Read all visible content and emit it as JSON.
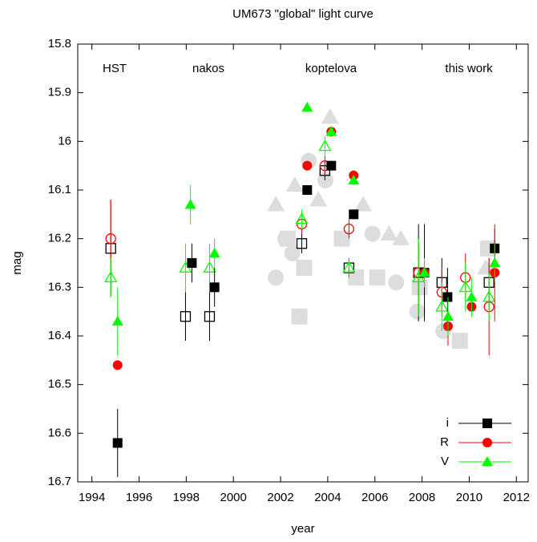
{
  "chart_data": {
    "type": "scatter",
    "title": "UM673 \"global\" light curve",
    "x_label": "year",
    "y_label": "mag",
    "annotations": [
      "HST",
      "nakos",
      "koptelova",
      "this work"
    ],
    "xlim": [
      1993.4,
      2012.5
    ],
    "xticks": [
      1994,
      1996,
      1998,
      2000,
      2002,
      2004,
      2006,
      2008,
      2010,
      2012
    ],
    "ylim": [
      15.8,
      16.7
    ],
    "y_reversed": true,
    "yticks": [
      15.8,
      15.9,
      16,
      16.1,
      16.2,
      16.3,
      16.4,
      16.5,
      16.6,
      16.7
    ],
    "legend": "bottom-right",
    "series": [
      {
        "color": "#dddddd",
        "marker": "square",
        "filled": true,
        "legend": false,
        "size": 10,
        "x": [
          2002.3,
          2003.0,
          2002.8,
          2004.6,
          2005.2,
          2006.1,
          2009.6,
          2010.8,
          2007.9
        ],
        "values": [
          16.2,
          16.26,
          16.36,
          16.2,
          16.28,
          16.28,
          16.41,
          16.22,
          16.3
        ]
      },
      {
        "color": "#dddddd",
        "marker": "circle",
        "filled": true,
        "legend": false,
        "size": 10,
        "x": [
          2002.2,
          2003.2,
          2003.9,
          2005.9,
          2006.9,
          2007.8,
          2008.9,
          2001.8,
          2002.5
        ],
        "values": [
          16.2,
          16.04,
          16.08,
          16.19,
          16.29,
          16.35,
          16.39,
          16.28,
          16.23
        ]
      },
      {
        "color": "#dddddd",
        "marker": "triangle",
        "filled": true,
        "legend": false,
        "size": 11,
        "x": [
          2001.8,
          2002.6,
          2004.1,
          2005.5,
          2006.6,
          2007.1,
          2010.7,
          2003.6
        ],
        "values": [
          16.13,
          16.09,
          15.95,
          16.13,
          16.19,
          16.2,
          16.26,
          16.12
        ]
      },
      {
        "name": "i",
        "color": "#000000",
        "marker": "square",
        "filled": false,
        "legend": false,
        "size": 6,
        "x": [
          1994.8,
          1997.97,
          1998.99,
          2002.9,
          2003.88,
          2004.9,
          2007.85,
          2008.84,
          2010.84
        ],
        "values": [
          16.22,
          16.36,
          16.36,
          16.21,
          16.06,
          16.26,
          16.27,
          16.29,
          16.29
        ],
        "errors": [
          0.1,
          0.05,
          0.05,
          0.02,
          0.02,
          0.02,
          0.1,
          0.05,
          0.05
        ]
      },
      {
        "name": "R",
        "color": "#ff0000",
        "marker": "circle",
        "filled": false,
        "legend": false,
        "size": 6,
        "x": [
          1994.8,
          2002.9,
          2003.88,
          2004.9,
          2007.85,
          2008.84,
          2009.84,
          2010.84
        ],
        "values": [
          16.2,
          16.17,
          16.05,
          16.18,
          16.27,
          16.31,
          16.28,
          16.34
        ],
        "errors": [
          0.08,
          0.02,
          0.02,
          0.02,
          0.06,
          0.05,
          0.05,
          0.1
        ]
      },
      {
        "name": "V",
        "color": "#00ff00",
        "marker": "triangle",
        "filled": false,
        "legend": false,
        "size": 7,
        "x": [
          1994.8,
          1997.97,
          1998.99,
          2002.9,
          2003.88,
          2004.9,
          2007.85,
          2008.84,
          2009.84,
          2010.84
        ],
        "values": [
          16.28,
          16.26,
          16.26,
          16.16,
          16.01,
          16.26,
          16.28,
          16.34,
          16.3,
          16.32
        ],
        "errors": [
          0.04,
          0.05,
          0.05,
          0.02,
          0.02,
          0.02,
          0.08,
          0.05,
          0.05,
          0.05
        ]
      },
      {
        "name": "i",
        "color": "#000000",
        "marker": "square",
        "filled": true,
        "legend": true,
        "size": 6,
        "x": [
          1995.09,
          1998.24,
          1999.2,
          2003.13,
          2004.15,
          2005.1,
          2008.1,
          2009.08,
          2011.08
        ],
        "values": [
          16.62,
          16.25,
          16.3,
          16.1,
          16.05,
          16.15,
          16.27,
          16.32,
          16.22
        ],
        "errors": [
          0.07,
          0.04,
          0.04,
          0.01,
          0.01,
          0.01,
          0.1,
          0.06,
          0.04
        ]
      },
      {
        "name": "R",
        "color": "#ff0000",
        "marker": "circle",
        "filled": true,
        "legend": true,
        "size": 6,
        "x": [
          1995.09,
          2003.13,
          2004.15,
          2005.1,
          2008.1,
          2009.1,
          2010.1,
          2011.08
        ],
        "values": [
          16.46,
          16.05,
          15.98,
          16.07,
          16.27,
          16.38,
          16.34,
          16.27
        ],
        "errors": [
          0.01,
          0.01,
          0.01,
          0.01,
          0.03,
          0.04,
          0.01,
          0.1
        ]
      },
      {
        "name": "V",
        "color": "#00ff00",
        "marker": "triangle",
        "filled": true,
        "legend": true,
        "size": 7,
        "x": [
          1995.09,
          1998.18,
          1999.2,
          2003.13,
          2004.15,
          2005.1,
          2008.1,
          2009.1,
          2010.1,
          2011.08
        ],
        "values": [
          16.37,
          16.13,
          16.23,
          15.93,
          15.98,
          16.08,
          16.27,
          16.36,
          16.32,
          16.25
        ],
        "errors": [
          0.07,
          0.04,
          0.03,
          0.01,
          0.01,
          0.01,
          0.03,
          0.04,
          0.04,
          0.04
        ]
      }
    ]
  }
}
